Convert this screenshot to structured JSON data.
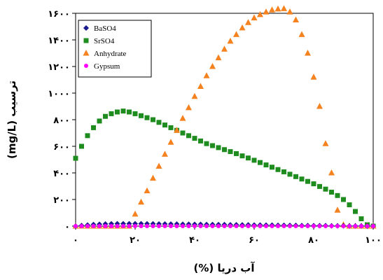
{
  "chart_data": {
    "type": "scatter",
    "title": "",
    "xlabel": "آب دریا (%)",
    "ylabel": "ترسیب (mg/L)",
    "xlim": [
      0,
      100
    ],
    "ylim": [
      0,
      1600
    ],
    "xticks": [
      0,
      20,
      40,
      60,
      80,
      100
    ],
    "yticks": [
      0,
      200,
      400,
      600,
      800,
      1000,
      1200,
      1400,
      1600
    ],
    "xtick_labels": [
      "۰",
      "۲۰",
      "۴۰",
      "۶۰",
      "۸۰",
      "۱۰۰"
    ],
    "ytick_labels": [
      "۰",
      "۲۰۰",
      "۴۰۰",
      "۶۰۰",
      "۸۰۰",
      "۱۰۰۰",
      "۱۲۰۰",
      "۱۴۰۰",
      "۱۶۰۰"
    ],
    "grid": false,
    "legend_position": "top-left",
    "series": [
      {
        "name": "BaSO4",
        "marker": "diamond",
        "color": "#1a1a8c",
        "x": [
          0,
          2,
          4,
          6,
          8,
          10,
          12,
          14,
          16,
          18,
          20,
          22,
          24,
          26,
          28,
          30,
          32,
          34,
          36,
          38,
          40,
          42,
          44,
          46,
          48,
          50,
          52,
          54,
          56,
          58,
          60,
          62,
          64,
          66,
          68,
          70,
          72,
          74,
          76,
          78,
          80,
          82,
          84,
          86,
          88,
          90,
          92,
          94,
          96,
          98,
          100
        ],
        "y": [
          0,
          4,
          8,
          12,
          14,
          16,
          17,
          18,
          18,
          18,
          18,
          18,
          17,
          17,
          16,
          16,
          15,
          15,
          14,
          14,
          13,
          13,
          12,
          12,
          11,
          11,
          10,
          10,
          9,
          9,
          8,
          8,
          7,
          7,
          6,
          6,
          5,
          5,
          4,
          4,
          3,
          3,
          3,
          2,
          2,
          2,
          1,
          1,
          1,
          0,
          0
        ]
      },
      {
        "name": "SrSO4",
        "marker": "square",
        "color": "#1e8c1e",
        "x": [
          0,
          2,
          4,
          6,
          8,
          10,
          12,
          14,
          16,
          18,
          20,
          22,
          24,
          26,
          28,
          30,
          32,
          34,
          36,
          38,
          40,
          42,
          44,
          46,
          48,
          50,
          52,
          54,
          56,
          58,
          60,
          62,
          64,
          66,
          68,
          70,
          72,
          74,
          76,
          78,
          80,
          82,
          84,
          86,
          88,
          90,
          92,
          94,
          96,
          98,
          100
        ],
        "y": [
          510,
          600,
          680,
          740,
          790,
          825,
          845,
          858,
          865,
          858,
          845,
          830,
          815,
          800,
          780,
          760,
          740,
          720,
          700,
          680,
          660,
          640,
          620,
          605,
          590,
          575,
          560,
          545,
          528,
          512,
          495,
          478,
          460,
          443,
          425,
          408,
          390,
          372,
          354,
          336,
          318,
          298,
          278,
          255,
          230,
          200,
          160,
          110,
          55,
          10,
          0
        ]
      },
      {
        "name": "Anhydrate",
        "marker": "triangle",
        "color": "#f5821f",
        "x": [
          0,
          2,
          4,
          6,
          8,
          10,
          12,
          14,
          16,
          18,
          20,
          22,
          24,
          26,
          28,
          30,
          32,
          34,
          36,
          38,
          40,
          42,
          44,
          46,
          48,
          50,
          52,
          54,
          56,
          58,
          60,
          62,
          64,
          66,
          68,
          70,
          72,
          74,
          76,
          78,
          80,
          82,
          84,
          86,
          88,
          90,
          92,
          94,
          96,
          98,
          100
        ],
        "y": [
          0,
          0,
          0,
          0,
          0,
          0,
          0,
          0,
          0,
          0,
          90,
          180,
          265,
          360,
          450,
          540,
          630,
          720,
          810,
          890,
          975,
          1050,
          1130,
          1200,
          1265,
          1330,
          1390,
          1440,
          1490,
          1530,
          1565,
          1590,
          1610,
          1625,
          1632,
          1635,
          1610,
          1550,
          1440,
          1300,
          1120,
          900,
          620,
          400,
          120,
          10,
          0,
          0,
          0,
          0,
          0
        ]
      },
      {
        "name": "Gypsum",
        "marker": "circle",
        "color": "#ff00ff",
        "x": [
          0,
          2,
          4,
          6,
          8,
          10,
          12,
          14,
          16,
          18,
          20,
          22,
          24,
          26,
          28,
          30,
          32,
          34,
          36,
          38,
          40,
          42,
          44,
          46,
          48,
          50,
          52,
          54,
          56,
          58,
          60,
          62,
          64,
          66,
          68,
          70,
          72,
          74,
          76,
          78,
          80,
          82,
          84,
          86,
          88,
          90,
          92,
          94,
          96,
          98,
          100
        ],
        "y": [
          0,
          0,
          0,
          0,
          0,
          0,
          0,
          0,
          0,
          0,
          0,
          0,
          0,
          0,
          0,
          0,
          0,
          0,
          0,
          0,
          0,
          0,
          0,
          0,
          0,
          0,
          0,
          0,
          0,
          0,
          0,
          0,
          0,
          0,
          0,
          0,
          0,
          0,
          0,
          0,
          0,
          0,
          0,
          0,
          0,
          0,
          0,
          0,
          0,
          0,
          0
        ]
      }
    ]
  }
}
